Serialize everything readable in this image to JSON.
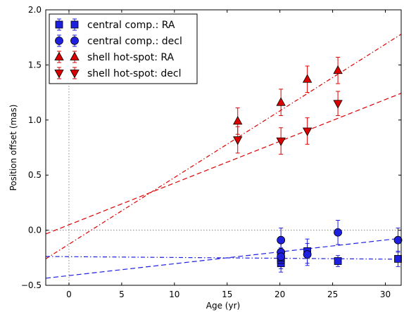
{
  "chart_data": {
    "type": "scatter",
    "title": "",
    "xlabel": "Age (yr)",
    "ylabel": "Position offset (mas)",
    "xlim": [
      -2.2,
      31.5
    ],
    "ylim": [
      -0.5,
      2.0
    ],
    "xticks": [
      0,
      5,
      10,
      15,
      20,
      25,
      30
    ],
    "yticks": [
      -0.5,
      0.0,
      0.5,
      1.0,
      1.5,
      2.0
    ],
    "xtick_labels": [
      "0",
      "5",
      "10",
      "15",
      "20",
      "25",
      "30"
    ],
    "ytick_labels": [
      "−0.5",
      "0.0",
      "0.5",
      "1.0",
      "1.5",
      "2.0"
    ],
    "grid": false,
    "legend_position": "top-left",
    "reference_lines": [
      {
        "orientation": "vertical",
        "value": 0,
        "style": "dotted",
        "color": "#888888"
      },
      {
        "orientation": "horizontal",
        "value": 0,
        "style": "dotted",
        "color": "#888888"
      }
    ],
    "series": [
      {
        "name": "central comp.: RA",
        "marker": "square",
        "color": "#1f1fe0",
        "points": [
          {
            "x": 20.1,
            "y": -0.3,
            "err": 0.08
          },
          {
            "x": 20.1,
            "y": -0.27,
            "err": 0.08
          },
          {
            "x": 20.1,
            "y": -0.25,
            "err": 0.08
          },
          {
            "x": 22.6,
            "y": -0.19,
            "err": 0.11
          },
          {
            "x": 25.5,
            "y": -0.28,
            "err": 0.05
          },
          {
            "x": 31.2,
            "y": -0.26,
            "err": 0.07
          }
        ]
      },
      {
        "name": "central comp.: decl",
        "marker": "circle",
        "color": "#1f1fe0",
        "points": [
          {
            "x": 20.1,
            "y": -0.09,
            "err": 0.11
          },
          {
            "x": 20.1,
            "y": -0.2,
            "err": 0.11
          },
          {
            "x": 20.1,
            "y": -0.24,
            "err": 0.08
          },
          {
            "x": 22.6,
            "y": -0.22,
            "err": 0.1
          },
          {
            "x": 25.5,
            "y": -0.02,
            "err": 0.11
          },
          {
            "x": 31.2,
            "y": -0.09,
            "err": 0.11
          }
        ]
      },
      {
        "name": "shell hot-spot: RA",
        "marker": "triangle-up",
        "color": "#dd0000",
        "points": [
          {
            "x": 16.0,
            "y": 0.99,
            "err": 0.12
          },
          {
            "x": 20.1,
            "y": 1.16,
            "err": 0.12
          },
          {
            "x": 22.6,
            "y": 1.37,
            "err": 0.12
          },
          {
            "x": 25.5,
            "y": 1.45,
            "err": 0.12
          }
        ]
      },
      {
        "name": "shell hot-spot: decl",
        "marker": "triangle-down",
        "color": "#dd0000",
        "points": [
          {
            "x": 16.0,
            "y": 0.82,
            "err": 0.12
          },
          {
            "x": 20.1,
            "y": 0.81,
            "err": 0.12
          },
          {
            "x": 22.6,
            "y": 0.9,
            "err": 0.12
          },
          {
            "x": 25.5,
            "y": 1.15,
            "err": 0.11
          }
        ]
      }
    ],
    "fit_lines": [
      {
        "color": "#dd0000",
        "style": "dash-dot",
        "slope": 0.0605,
        "intercept": -0.127
      },
      {
        "color": "#dd0000",
        "style": "dashed",
        "slope": 0.0379,
        "intercept": 0.049
      },
      {
        "color": "#1f1fe0",
        "style": "dashed",
        "slope": 0.01077,
        "intercept": -0.412
      },
      {
        "color": "#1f1fe0",
        "style": "dash-dot",
        "slope": -0.00074,
        "intercept": -0.24
      }
    ]
  }
}
